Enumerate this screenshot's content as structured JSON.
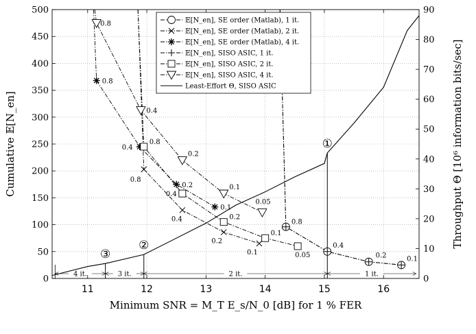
{
  "chart_data": {
    "type": "line",
    "xlabel": "Minimum SNR = M_T E_s/N_0 [dB] for 1 % FER",
    "ylabel": "Cumulative 𝔼[N_en]",
    "y2label": "Throughput Θ [10⁶ information bits/sec]",
    "xlim": [
      10.4,
      16.6
    ],
    "ylim": [
      0,
      500
    ],
    "y2lim": [
      0,
      90
    ],
    "xticks": [
      11,
      12,
      13,
      14,
      15,
      16
    ],
    "yticks": [
      0,
      50,
      100,
      150,
      200,
      250,
      300,
      350,
      400,
      450,
      500
    ],
    "y2ticks": [
      0,
      10,
      20,
      30,
      40,
      50,
      60,
      70,
      80,
      90
    ],
    "grid": true,
    "legend_position": "top-right",
    "series": [
      {
        "name": "𝔼[N_en], SE order (Matlab), 1 it.",
        "marker": "circle",
        "dash": "dashdot",
        "axis": "left",
        "x": [
          14.25,
          14.35,
          15.05,
          15.75,
          16.3
        ],
        "y": [
          500,
          96,
          50,
          31,
          25
        ]
      },
      {
        "name": "𝔼[N_en], SE order (Matlab), 2 it.",
        "marker": "x",
        "dash": "dashdot",
        "axis": "left",
        "x": [
          11.85,
          11.95,
          12.6,
          13.3,
          13.9
        ],
        "y": [
          500,
          203,
          127,
          86,
          65
        ]
      },
      {
        "name": "𝔼[N_en], SE order (Matlab), 4 it.",
        "marker": "asterisk",
        "dash": "dashdot",
        "axis": "left",
        "x": [
          11.1,
          11.15,
          11.88,
          12.5,
          13.15
        ],
        "y": [
          500,
          368,
          245,
          175,
          133
        ]
      },
      {
        "name": "𝔼[N_en], SISO ASIC, 1 it.",
        "marker": "plus",
        "dash": "dashdot",
        "axis": "left",
        "x": [
          14.25,
          14.35,
          15.05,
          15.75,
          16.3
        ],
        "y": [
          500,
          96,
          50,
          31,
          25
        ]
      },
      {
        "name": "𝔼[N_en], SISO ASIC, 2 it.",
        "marker": "square",
        "dash": "dashdot",
        "axis": "left",
        "x": [
          11.85,
          11.95,
          12.6,
          13.3,
          14.0,
          14.55
        ],
        "y": [
          500,
          245,
          158,
          105,
          75,
          60
        ]
      },
      {
        "name": "𝔼[N_en], SISO ASIC, 4 it.",
        "marker": "triangle",
        "dash": "dashdot",
        "axis": "left",
        "x": [
          11.12,
          11.15,
          11.9,
          12.6,
          13.3,
          13.95
        ],
        "y": [
          500,
          475,
          313,
          220,
          158,
          123
        ]
      },
      {
        "name": "Least-Effort Θ, SISO ASIC",
        "marker": "none",
        "dash": "solid",
        "axis": "right",
        "x": [
          10.4,
          11.0,
          11.3,
          11.95,
          12.4,
          13.0,
          13.5,
          14.0,
          14.5,
          15.0,
          15.05,
          15.5,
          16.0,
          16.4,
          16.6
        ],
        "y": [
          1,
          4,
          5,
          8,
          12.5,
          18.5,
          24.5,
          29,
          34,
          38.5,
          42,
          52,
          64,
          83,
          88
        ]
      }
    ],
    "annotations": [
      {
        "text": "0.8",
        "x": 11.12,
        "y": 475,
        "dx": 8,
        "dy": 4
      },
      {
        "text": "0.8",
        "x": 11.15,
        "y": 368,
        "dx": 8,
        "dy": 4
      },
      {
        "text": "0.4",
        "x": 11.9,
        "y": 313,
        "dx": 8,
        "dy": 4
      },
      {
        "text": "0.8",
        "x": 11.95,
        "y": 245,
        "dx": 8,
        "dy": -4
      },
      {
        "text": "0.4",
        "x": 11.88,
        "y": 245,
        "dx": -26,
        "dy": 4
      },
      {
        "text": "0.8",
        "x": 11.95,
        "y": 203,
        "dx": -20,
        "dy": 18
      },
      {
        "text": "0.2",
        "x": 12.6,
        "y": 220,
        "dx": 8,
        "dy": -6
      },
      {
        "text": "0.2",
        "x": 12.5,
        "y": 175,
        "dx": 8,
        "dy": 4
      },
      {
        "text": "0.4",
        "x": 12.6,
        "y": 158,
        "dx": -24,
        "dy": 4
      },
      {
        "text": "0.4",
        "x": 12.6,
        "y": 127,
        "dx": -16,
        "dy": 16
      },
      {
        "text": "0.1",
        "x": 13.15,
        "y": 133,
        "dx": 8,
        "dy": 4
      },
      {
        "text": "0.1",
        "x": 13.3,
        "y": 158,
        "dx": 8,
        "dy": -6
      },
      {
        "text": "0.2",
        "x": 13.3,
        "y": 105,
        "dx": 8,
        "dy": -4
      },
      {
        "text": "0.2",
        "x": 13.3,
        "y": 86,
        "dx": -18,
        "dy": 16
      },
      {
        "text": "0.05",
        "x": 13.95,
        "y": 123,
        "dx": -10,
        "dy": -12
      },
      {
        "text": "0.1",
        "x": 14.0,
        "y": 75,
        "dx": 8,
        "dy": -4
      },
      {
        "text": "0.1",
        "x": 13.9,
        "y": 65,
        "dx": -18,
        "dy": 16
      },
      {
        "text": "0.05",
        "x": 14.55,
        "y": 60,
        "dx": -4,
        "dy": 16
      },
      {
        "text": "0.8",
        "x": 14.35,
        "y": 96,
        "dx": 8,
        "dy": -4
      },
      {
        "text": "0.4",
        "x": 15.05,
        "y": 50,
        "dx": 8,
        "dy": -6
      },
      {
        "text": "0.2",
        "x": 15.75,
        "y": 31,
        "dx": 10,
        "dy": -6
      },
      {
        "text": "0.1",
        "x": 16.3,
        "y": 25,
        "dx": 8,
        "dy": -6
      }
    ],
    "regions": [
      {
        "label": "4 it.",
        "from": 10.45,
        "to": 11.3
      },
      {
        "label": "3 it.",
        "from": 11.3,
        "to": 11.95
      },
      {
        "label": "2 it.",
        "from": 11.95,
        "to": 15.05
      },
      {
        "label": "1 it.",
        "from": 15.05,
        "to": 16.55
      }
    ],
    "markers_vertical": [
      {
        "label": "③",
        "x": 11.3,
        "y2": 5
      },
      {
        "label": "②",
        "x": 11.95,
        "y2": 8
      },
      {
        "label": "①",
        "x": 15.05,
        "y2": 42
      }
    ]
  }
}
